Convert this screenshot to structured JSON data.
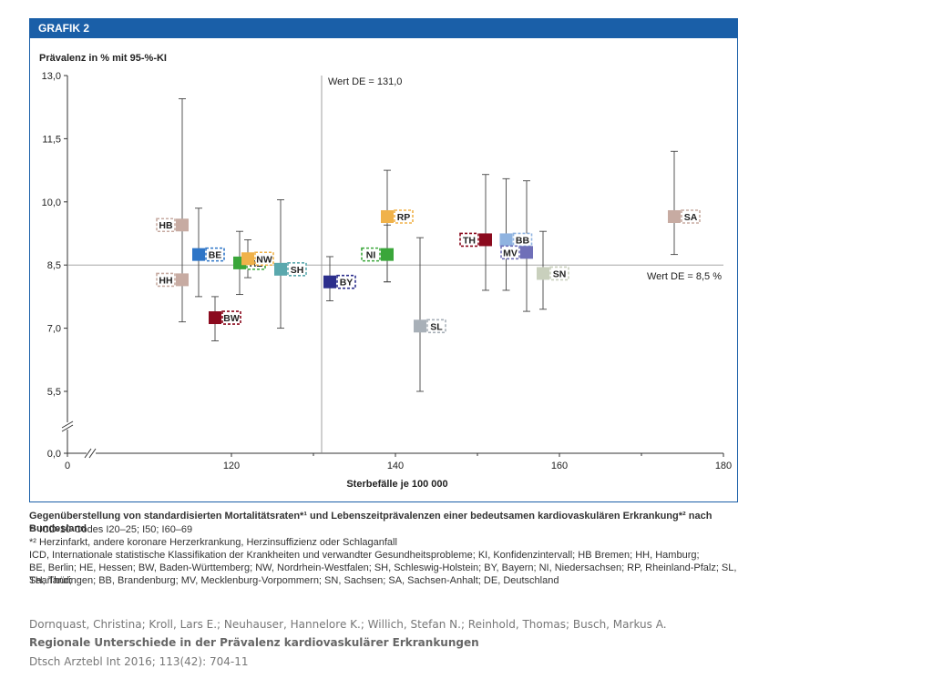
{
  "figure": {
    "label": "GRAFIK 2"
  },
  "chart_data": {
    "type": "scatter",
    "ylabel": "Prävalenz in % mit 95-%-KI",
    "xlabel": "Sterbefälle je 100 000",
    "x_ticks": [
      "0",
      "120",
      "140",
      "160",
      "180"
    ],
    "y_ticks": [
      "0,0",
      "5,5",
      "7,0",
      "8,5",
      "10,0",
      "11,5",
      "13,0"
    ],
    "xlim": [
      100,
      180
    ],
    "ylim": [
      4.5,
      13.0
    ],
    "axis_breaks": true,
    "grid": false,
    "reference_lines": {
      "vertical": {
        "x": 131.0,
        "label": "Wert DE = 131,0"
      },
      "horizontal": {
        "y": 8.5,
        "label": "Wert DE = 8,5 %"
      }
    },
    "points": [
      {
        "label": "HB",
        "x": 114.0,
        "y": 9.45,
        "lo": 7.15,
        "hi": 12.45,
        "color": "#c7aba2",
        "label_side": "left"
      },
      {
        "label": "HH",
        "x": 114.0,
        "y": 8.15,
        "lo": 7.15,
        "hi": 12.45,
        "color": "#c7aba2",
        "label_side": "left"
      },
      {
        "label": "BE",
        "x": 116.0,
        "y": 8.75,
        "lo": 7.75,
        "hi": 9.85,
        "color": "#2e75c7",
        "label_side": "right"
      },
      {
        "label": "BW",
        "x": 118.0,
        "y": 7.25,
        "lo": 6.7,
        "hi": 7.75,
        "color": "#8b0a1e",
        "label_side": "right"
      },
      {
        "label": "HE",
        "x": 121.0,
        "y": 8.55,
        "lo": 7.8,
        "hi": 9.3,
        "color": "#3aa63a",
        "label_side": "right"
      },
      {
        "label": "NW",
        "x": 122.0,
        "y": 8.65,
        "lo": 8.2,
        "hi": 9.1,
        "color": "#f0b24a",
        "label_side": "right"
      },
      {
        "label": "SH",
        "x": 126.0,
        "y": 8.4,
        "lo": 7.0,
        "hi": 10.05,
        "color": "#5aa8ad",
        "label_side": "right"
      },
      {
        "label": "BY",
        "x": 132.0,
        "y": 8.1,
        "lo": 7.65,
        "hi": 8.7,
        "color": "#2b2e8c",
        "label_side": "right"
      },
      {
        "label": "NI",
        "x": 139.0,
        "y": 8.75,
        "lo": 8.1,
        "hi": 9.45,
        "color": "#3aa63a",
        "label_side": "left"
      },
      {
        "label": "RP",
        "x": 139.0,
        "y": 9.65,
        "lo": 8.1,
        "hi": 10.75,
        "color": "#f0b24a",
        "label_side": "right"
      },
      {
        "label": "SL",
        "x": 143.0,
        "y": 7.05,
        "lo": 5.5,
        "hi": 9.15,
        "color": "#a8b0b8",
        "label_side": "right"
      },
      {
        "label": "TH",
        "x": 151.0,
        "y": 9.1,
        "lo": 7.9,
        "hi": 10.65,
        "color": "#8b0a1e",
        "label_side": "left"
      },
      {
        "label": "BB",
        "x": 153.5,
        "y": 9.1,
        "lo": 7.9,
        "hi": 10.55,
        "color": "#8fb3e0",
        "label_side": "right"
      },
      {
        "label": "MV",
        "x": 156.0,
        "y": 8.8,
        "lo": 7.4,
        "hi": 10.5,
        "color": "#6f6fb8",
        "label_side": "left"
      },
      {
        "label": "SN",
        "x": 158.0,
        "y": 8.3,
        "lo": 7.45,
        "hi": 9.3,
        "color": "#c9d0bd",
        "label_side": "right"
      },
      {
        "label": "SA",
        "x": 174.0,
        "y": 9.65,
        "lo": 8.75,
        "hi": 11.2,
        "color": "#c7aba2",
        "label_side": "right"
      }
    ]
  },
  "caption": {
    "title": "Gegenüberstellung von standardisierten Mortalitätsraten*¹ und Lebenszeitprävalenzen einer bedeutsamen kardiovaskulären Erkrankung*² nach Bundesland",
    "lines": [
      "*¹ ICD-10-Codes I20–25; I50; I60–69",
      "*² Herzinfarkt, andere koronare Herzerkrankung, Herzinsuffizienz oder Schlaganfall",
      "ICD, Internationale statistische Klassifikation der Krankheiten und verwandter Gesundheitsprobleme; KI, Konfidenzintervall; HB Bremen; HH, Hamburg;",
      "BE, Berlin; HE, Hessen; BW, Baden-Württemberg; NW, Nordrhein-Westfalen; SH, Schleswig-Holstein; BY, Bayern; NI, Niedersachsen; RP, Rheinland-Pfalz; SL, Saarland;",
      "TH, Thüringen; BB, Brandenburg; MV, Mecklenburg-Vorpommern; SN, Sachsen; SA, Sachsen-Anhalt; DE, Deutschland"
    ]
  },
  "citation": {
    "authors": "Dornquast, Christina; Kroll, Lars E.; Neuhauser, Hannelore K.; Willich, Stefan N.; Reinhold, Thomas; Busch, Markus A.",
    "title": "Regionale Unterschiede in der Prävalenz kardiovaskulärer Erkrankungen",
    "journal": "Dtsch Arztebl Int 2016; 113(42): 704-11"
  }
}
